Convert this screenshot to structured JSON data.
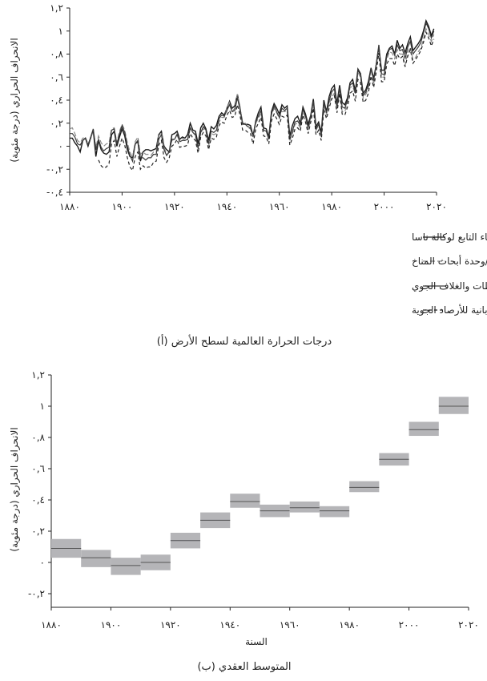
{
  "chart_data": [
    {
      "type": "line",
      "caption": "(أ) درجات الحرارة العالمية لسطح الأرض",
      "ylabel": "الانحراف الحراري (درجة مئوية)",
      "xlim": [
        1880,
        2020
      ],
      "ylim": [
        -0.4,
        1.2
      ],
      "xticks": [
        "١٨٨٠",
        "١٩٠٠",
        "١٩٢٠",
        "١٩٤٠",
        "١٩٦٠",
        "١٩٨٠",
        "٢٠٠٠",
        "٢٠٢٠"
      ],
      "xtick_values": [
        1880,
        1900,
        1920,
        1940,
        1960,
        1980,
        2000,
        2020
      ],
      "yticks": [
        "١,٢",
        "١",
        "٠,٨",
        "٠,٦",
        "٠,٤",
        "٠,٢",
        "٠",
        "-٠,٢",
        "-٠,٤"
      ],
      "ytick_values": [
        1.2,
        1.0,
        0.8,
        0.6,
        0.4,
        0.2,
        0.0,
        -0.2,
        -0.4
      ],
      "legend_position": "bottom",
      "x": [
        1880,
        1881,
        1882,
        1883,
        1884,
        1885,
        1886,
        1887,
        1888,
        1889,
        1890,
        1891,
        1892,
        1893,
        1894,
        1895,
        1896,
        1897,
        1898,
        1899,
        1900,
        1901,
        1902,
        1903,
        1904,
        1905,
        1906,
        1907,
        1908,
        1909,
        1910,
        1911,
        1912,
        1913,
        1914,
        1915,
        1916,
        1917,
        1918,
        1919,
        1920,
        1921,
        1922,
        1923,
        1924,
        1925,
        1926,
        1927,
        1928,
        1929,
        1930,
        1931,
        1932,
        1933,
        1934,
        1935,
        1936,
        1937,
        1938,
        1939,
        1940,
        1941,
        1942,
        1943,
        1944,
        1945,
        1946,
        1947,
        1948,
        1949,
        1950,
        1951,
        1952,
        1953,
        1954,
        1955,
        1956,
        1957,
        1958,
        1959,
        1960,
        1961,
        1962,
        1963,
        1964,
        1965,
        1966,
        1967,
        1968,
        1969,
        1970,
        1971,
        1972,
        1973,
        1974,
        1975,
        1976,
        1977,
        1978,
        1979,
        1980,
        1981,
        1982,
        1983,
        1984,
        1985,
        1986,
        1987,
        1988,
        1989,
        1990,
        1991,
        1992,
        1993,
        1994,
        1995,
        1996,
        1997,
        1998,
        1999,
        2000,
        2001,
        2002,
        2003,
        2004,
        2005,
        2006,
        2007,
        2008,
        2009,
        2010,
        2011,
        2012,
        2013,
        2014,
        2015,
        2016,
        2017,
        2018,
        2019
      ],
      "series": [
        {
          "name": "معهد جودارد لدراسات الفضاء التابع لوكالة ناسا",
          "color": "#1a1a1a",
          "dash": "",
          "values": [
            0.07,
            0.07,
            0.03,
            0.0,
            -0.05,
            0.05,
            0.07,
            0.0,
            0.07,
            0.14,
            -0.09,
            0.05,
            -0.03,
            -0.06,
            -0.07,
            -0.05,
            0.1,
            0.13,
            0.0,
            0.08,
            0.15,
            0.09,
            -0.03,
            -0.09,
            -0.1,
            0.02,
            0.04,
            -0.13,
            -0.05,
            -0.03,
            -0.03,
            -0.04,
            -0.03,
            -0.02,
            0.1,
            0.13,
            0.0,
            -0.03,
            -0.05,
            0.1,
            0.11,
            0.13,
            0.06,
            0.08,
            0.07,
            0.1,
            0.2,
            0.14,
            0.13,
            0.02,
            0.16,
            0.2,
            0.15,
            0.05,
            0.17,
            0.15,
            0.18,
            0.26,
            0.29,
            0.27,
            0.33,
            0.39,
            0.33,
            0.35,
            0.45,
            0.33,
            0.2,
            0.19,
            0.19,
            0.18,
            0.09,
            0.22,
            0.29,
            0.34,
            0.16,
            0.15,
            0.08,
            0.3,
            0.37,
            0.33,
            0.28,
            0.36,
            0.33,
            0.35,
            0.09,
            0.18,
            0.24,
            0.26,
            0.2,
            0.34,
            0.28,
            0.19,
            0.27,
            0.41,
            0.17,
            0.21,
            0.12,
            0.4,
            0.3,
            0.43,
            0.5,
            0.53,
            0.37,
            0.53,
            0.38,
            0.36,
            0.42,
            0.55,
            0.58,
            0.48,
            0.67,
            0.63,
            0.46,
            0.49,
            0.56,
            0.68,
            0.59,
            0.71,
            0.86,
            0.66,
            0.66,
            0.8,
            0.85,
            0.87,
            0.8,
            0.92,
            0.85,
            0.88,
            0.81,
            0.89,
            0.95,
            0.83,
            0.86,
            0.89,
            0.93,
            1.0,
            1.09,
            1.04,
            0.96,
            1.02
          ]
        },
        {
          "name": "مركز هادلي التابع لمكتب الأرصاد الجوية/وحدة أبحاث المناخ",
          "color": "#8a8a8a",
          "dash": "6,3",
          "values": [
            0.15,
            0.16,
            0.11,
            0.05,
            0.03,
            0.07,
            0.08,
            0.02,
            0.07,
            0.15,
            -0.01,
            0.09,
            0.03,
            0.0,
            0.02,
            0.03,
            0.15,
            0.16,
            0.03,
            0.13,
            0.19,
            0.14,
            0.03,
            -0.05,
            -0.1,
            0.04,
            0.08,
            -0.07,
            -0.05,
            -0.07,
            -0.07,
            -0.08,
            -0.05,
            -0.05,
            0.09,
            0.12,
            0.0,
            -0.08,
            -0.04,
            0.05,
            0.06,
            0.11,
            0.05,
            0.07,
            0.05,
            0.05,
            0.15,
            0.12,
            0.09,
            -0.02,
            0.12,
            0.15,
            0.13,
            0.0,
            0.11,
            0.1,
            0.11,
            0.21,
            0.25,
            0.25,
            0.33,
            0.38,
            0.3,
            0.33,
            0.45,
            0.35,
            0.19,
            0.2,
            0.16,
            0.15,
            0.09,
            0.2,
            0.24,
            0.28,
            0.14,
            0.13,
            0.07,
            0.27,
            0.33,
            0.29,
            0.24,
            0.3,
            0.3,
            0.31,
            0.05,
            0.11,
            0.19,
            0.2,
            0.16,
            0.3,
            0.25,
            0.14,
            0.24,
            0.38,
            0.14,
            0.18,
            0.08,
            0.36,
            0.28,
            0.36,
            0.43,
            0.46,
            0.32,
            0.49,
            0.3,
            0.3,
            0.38,
            0.51,
            0.52,
            0.45,
            0.64,
            0.6,
            0.42,
            0.45,
            0.5,
            0.67,
            0.54,
            0.71,
            0.88,
            0.6,
            0.6,
            0.75,
            0.82,
            0.81,
            0.76,
            0.84,
            0.8,
            0.8,
            0.7,
            0.82,
            0.86,
            0.75,
            0.77,
            0.82,
            0.85,
            0.93,
            1.02,
            0.97,
            0.91,
            0.97
          ]
        },
        {
          "name": "المركز الوطني للبيانات المناخية التابع للإدارة الوطنية للمحيطات والغلاف الجوي",
          "color": "#3a3a3a",
          "dash": "",
          "values": [
            0.11,
            0.11,
            0.08,
            0.02,
            0.01,
            0.05,
            0.07,
            0.01,
            0.08,
            0.15,
            -0.03,
            0.06,
            -0.01,
            -0.04,
            -0.02,
            -0.01,
            0.14,
            0.15,
            0.02,
            0.11,
            0.18,
            0.12,
            0.0,
            -0.08,
            -0.13,
            0.02,
            0.05,
            -0.1,
            -0.1,
            -0.12,
            -0.1,
            -0.1,
            -0.07,
            -0.07,
            0.06,
            0.1,
            -0.03,
            -0.08,
            -0.05,
            0.06,
            0.06,
            0.1,
            0.04,
            0.05,
            0.05,
            0.06,
            0.16,
            0.12,
            0.1,
            -0.02,
            0.12,
            0.17,
            0.14,
            0.02,
            0.13,
            0.12,
            0.14,
            0.24,
            0.27,
            0.26,
            0.31,
            0.36,
            0.3,
            0.31,
            0.42,
            0.32,
            0.19,
            0.19,
            0.17,
            0.16,
            0.08,
            0.21,
            0.26,
            0.31,
            0.14,
            0.13,
            0.06,
            0.28,
            0.35,
            0.3,
            0.25,
            0.33,
            0.31,
            0.33,
            0.06,
            0.13,
            0.21,
            0.22,
            0.18,
            0.32,
            0.26,
            0.16,
            0.26,
            0.39,
            0.15,
            0.19,
            0.1,
            0.38,
            0.29,
            0.39,
            0.47,
            0.5,
            0.35,
            0.51,
            0.34,
            0.33,
            0.4,
            0.53,
            0.55,
            0.46,
            0.66,
            0.62,
            0.44,
            0.47,
            0.53,
            0.68,
            0.57,
            0.72,
            0.88,
            0.63,
            0.62,
            0.78,
            0.84,
            0.85,
            0.79,
            0.88,
            0.83,
            0.84,
            0.76,
            0.86,
            0.91,
            0.8,
            0.83,
            0.86,
            0.9,
            0.98,
            1.07,
            1.02,
            0.94,
            1.0
          ]
        },
        {
          "name": "الوكالة اليابانية للأرصاد الجوية",
          "color": "#222222",
          "dash": "4,3",
          "values": [
            null,
            null,
            null,
            null,
            null,
            null,
            null,
            null,
            null,
            null,
            null,
            -0.12,
            -0.17,
            -0.19,
            -0.18,
            -0.15,
            0.02,
            0.05,
            -0.09,
            0.0,
            0.07,
            0.01,
            -0.1,
            -0.18,
            -0.21,
            -0.09,
            -0.05,
            -0.2,
            -0.17,
            -0.19,
            -0.18,
            -0.18,
            -0.14,
            -0.13,
            0.01,
            0.05,
            -0.1,
            -0.14,
            -0.1,
            0.0,
            0.02,
            0.06,
            -0.01,
            0.0,
            0.0,
            0.01,
            0.11,
            0.07,
            0.05,
            -0.06,
            0.08,
            0.12,
            0.09,
            -0.03,
            0.07,
            0.06,
            0.08,
            0.18,
            0.21,
            0.2,
            0.27,
            0.31,
            0.25,
            0.26,
            0.36,
            0.27,
            0.14,
            0.14,
            0.12,
            0.11,
            0.02,
            0.15,
            0.2,
            0.25,
            0.09,
            0.08,
            0.02,
            0.22,
            0.28,
            0.24,
            0.19,
            0.26,
            0.25,
            0.27,
            0.01,
            0.07,
            0.15,
            0.16,
            0.13,
            0.27,
            0.21,
            0.11,
            0.21,
            0.33,
            0.1,
            0.14,
            0.05,
            0.32,
            0.24,
            0.33,
            0.41,
            0.44,
            0.29,
            0.46,
            0.28,
            0.27,
            0.34,
            0.46,
            0.48,
            0.39,
            0.58,
            0.55,
            0.38,
            0.4,
            0.46,
            0.61,
            0.51,
            0.65,
            0.81,
            0.56,
            0.56,
            0.71,
            0.76,
            0.76,
            0.7,
            0.8,
            0.76,
            0.78,
            0.69,
            0.78,
            0.84,
            0.72,
            0.75,
            0.79,
            0.83,
            0.9,
            0.99,
            0.94,
            0.87,
            0.93
          ]
        }
      ]
    },
    {
      "type": "bar",
      "subtype": "decadal-range",
      "caption": "(ب) المتوسط العقدي",
      "xlabel": "السنة",
      "ylabel": "الانحراف الحراري (درجة مئوية)",
      "xlim": [
        1880,
        2020
      ],
      "ylim": [
        -0.2,
        1.2
      ],
      "xticks": [
        "١٨٨٠",
        "١٩٠٠",
        "١٩٢٠",
        "١٩٤٠",
        "١٩٦٠",
        "١٩٨٠",
        "٢٠٠٠",
        "٢٠٢٠"
      ],
      "xtick_values": [
        1880,
        1900,
        1920,
        1940,
        1960,
        1980,
        2000,
        2020
      ],
      "yticks": [
        "١,٢",
        "١",
        "٠,٨",
        "٠,٦",
        "٠,٤",
        "٠,٢",
        "٠",
        "-٠,٢"
      ],
      "ytick_values": [
        1.2,
        1.0,
        0.8,
        0.6,
        0.4,
        0.2,
        0.0,
        -0.2
      ],
      "decades": [
        {
          "start": 1880,
          "end": 1890,
          "mean": 0.09,
          "low": 0.03,
          "high": 0.15
        },
        {
          "start": 1890,
          "end": 1900,
          "mean": 0.03,
          "low": -0.03,
          "high": 0.08
        },
        {
          "start": 1900,
          "end": 1910,
          "mean": -0.02,
          "low": -0.08,
          "high": 0.03
        },
        {
          "start": 1910,
          "end": 1920,
          "mean": 0.0,
          "low": -0.05,
          "high": 0.05
        },
        {
          "start": 1920,
          "end": 1930,
          "mean": 0.14,
          "low": 0.09,
          "high": 0.19
        },
        {
          "start": 1930,
          "end": 1940,
          "mean": 0.27,
          "low": 0.22,
          "high": 0.32
        },
        {
          "start": 1940,
          "end": 1950,
          "mean": 0.39,
          "low": 0.35,
          "high": 0.44
        },
        {
          "start": 1950,
          "end": 1960,
          "mean": 0.33,
          "low": 0.29,
          "high": 0.37
        },
        {
          "start": 1960,
          "end": 1970,
          "mean": 0.35,
          "low": 0.32,
          "high": 0.39
        },
        {
          "start": 1970,
          "end": 1980,
          "mean": 0.33,
          "low": 0.29,
          "high": 0.36
        },
        {
          "start": 1980,
          "end": 1990,
          "mean": 0.48,
          "low": 0.45,
          "high": 0.52
        },
        {
          "start": 1990,
          "end": 2000,
          "mean": 0.66,
          "low": 0.62,
          "high": 0.7
        },
        {
          "start": 2000,
          "end": 2010,
          "mean": 0.85,
          "low": 0.81,
          "high": 0.9
        },
        {
          "start": 2010,
          "end": 2020,
          "mean": 1.0,
          "low": 0.95,
          "high": 1.06
        }
      ],
      "bar_color": "#b5b5b8",
      "mean_line_color": "#555555"
    }
  ]
}
